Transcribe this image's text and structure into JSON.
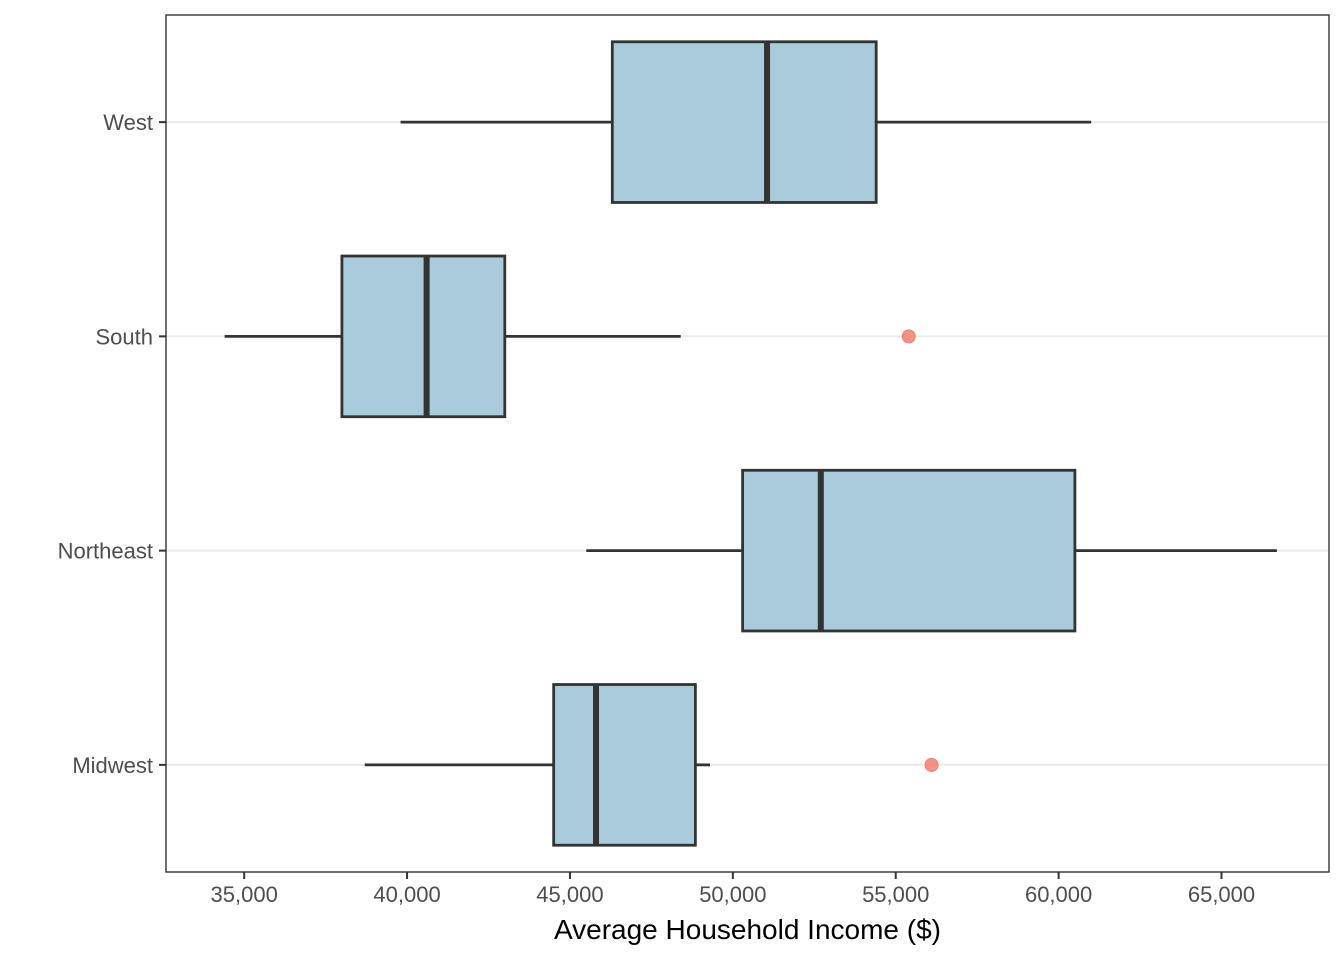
{
  "chart_data": {
    "type": "boxplot",
    "orientation": "horizontal",
    "title": "",
    "xlabel": "Average Household Income ($)",
    "ylabel": "",
    "xlim": [
      32600,
      68300
    ],
    "x_ticks": [
      35000,
      40000,
      45000,
      50000,
      55000,
      60000,
      65000
    ],
    "x_tick_labels": [
      "35,000",
      "40,000",
      "45,000",
      "50,000",
      "55,000",
      "60,000",
      "65,000"
    ],
    "categories": [
      "Midwest",
      "Northeast",
      "South",
      "West"
    ],
    "boxes": [
      {
        "category": "Midwest",
        "whisker_low": 38700,
        "q1": 44500,
        "median": 45800,
        "q3": 48850,
        "whisker_high": 49300,
        "outliers": [
          56100
        ]
      },
      {
        "category": "Northeast",
        "whisker_low": 45500,
        "q1": 50300,
        "median": 52700,
        "q3": 60500,
        "whisker_high": 66700,
        "outliers": []
      },
      {
        "category": "South",
        "whisker_low": 34400,
        "q1": 38000,
        "median": 40600,
        "q3": 43000,
        "whisker_high": 48400,
        "outliers": [
          55400
        ]
      },
      {
        "category": "West",
        "whisker_low": 39800,
        "q1": 46300,
        "median": 51050,
        "q3": 54400,
        "whisker_high": 61000,
        "outliers": []
      }
    ],
    "grid": "horizontal-major",
    "legend": "none",
    "colors": {
      "box_fill": "#a9cbdc",
      "box_stroke": "#333333",
      "outlier": "#f08070",
      "grid": "#ebebeb",
      "panel_border": "#333333",
      "tick_text": "#4d4d4d"
    }
  }
}
